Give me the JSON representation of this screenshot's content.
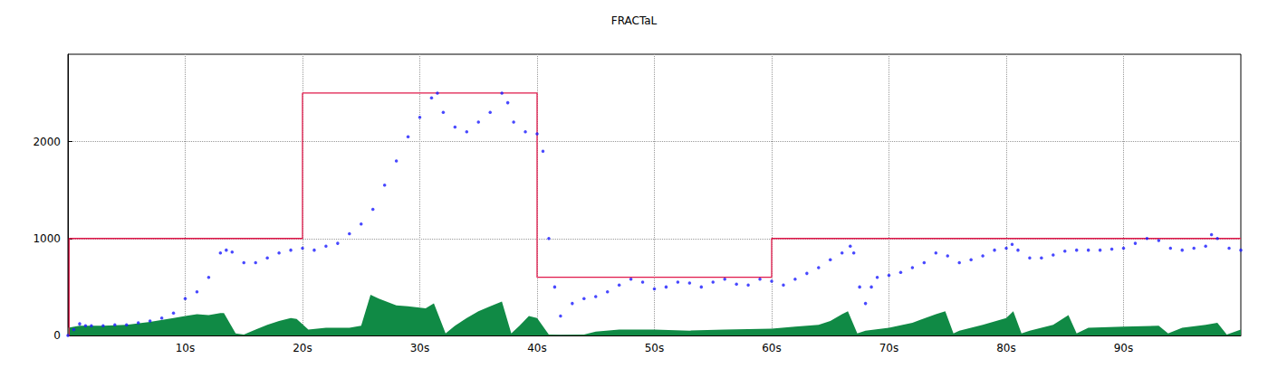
{
  "chart_data": {
    "type": "line",
    "title": "FRACTaL",
    "xlim": [
      0,
      100
    ],
    "xticks": [
      {
        "value": 10,
        "label": "10s"
      },
      {
        "value": 20,
        "label": "20s"
      },
      {
        "value": 30,
        "label": "30s"
      },
      {
        "value": 40,
        "label": "40s"
      },
      {
        "value": 50,
        "label": "50s"
      },
      {
        "value": 60,
        "label": "60s"
      },
      {
        "value": 70,
        "label": "70s"
      },
      {
        "value": 80,
        "label": "80s"
      },
      {
        "value": 90,
        "label": "90s"
      }
    ],
    "ylim": [
      0,
      2900
    ],
    "yticks": [
      0,
      1000,
      2000
    ],
    "grid": true,
    "series": [
      {
        "type": "area",
        "color": "#108a45",
        "x": [
          0,
          1,
          3,
          5,
          7,
          9,
          10,
          11,
          12,
          13,
          13.3,
          14.3,
          15,
          16,
          17,
          18,
          19,
          19.5,
          20.5,
          22,
          24,
          25,
          25.8,
          26.5,
          28,
          29,
          30.5,
          31.2,
          32.2,
          33,
          34,
          35,
          36,
          37,
          37.8,
          38.5,
          39.3,
          40,
          41,
          42,
          44,
          45,
          47,
          50,
          53,
          56,
          60,
          62,
          64,
          65,
          66,
          66.5,
          67.3,
          68,
          70,
          72,
          74,
          74.8,
          75.5,
          76,
          78,
          80,
          80.6,
          81.3,
          82,
          84,
          85.3,
          86,
          87,
          90,
          93,
          93.8,
          95,
          97,
          98,
          98.8,
          100
        ],
        "values": [
          80,
          100,
          100,
          110,
          140,
          180,
          200,
          220,
          210,
          230,
          230,
          20,
          10,
          60,
          110,
          150,
          180,
          170,
          60,
          80,
          80,
          100,
          420,
          380,
          310,
          300,
          280,
          330,
          20,
          100,
          180,
          250,
          300,
          350,
          20,
          100,
          200,
          180,
          10,
          5,
          10,
          40,
          60,
          60,
          50,
          60,
          70,
          90,
          110,
          150,
          220,
          250,
          20,
          50,
          80,
          130,
          220,
          250,
          20,
          50,
          110,
          180,
          250,
          20,
          50,
          110,
          210,
          20,
          80,
          90,
          100,
          20,
          80,
          110,
          130,
          10,
          60
        ]
      },
      {
        "type": "step",
        "color": "#e0184a",
        "x": [
          0,
          0.1,
          20,
          40,
          60,
          100
        ],
        "values": [
          0,
          1000,
          2500,
          600,
          1000,
          1000
        ]
      },
      {
        "type": "scatter",
        "color": "#1a1aff",
        "marker": "circle",
        "x": [
          0,
          0.5,
          1,
          1.5,
          2,
          3,
          4,
          5,
          6,
          7,
          8,
          9,
          10,
          11,
          12,
          13,
          13.5,
          14,
          15,
          16,
          17,
          18,
          19,
          20,
          21,
          22,
          23,
          24,
          25,
          26,
          27,
          28,
          29,
          30,
          31,
          31.5,
          32,
          33,
          34,
          35,
          36,
          37,
          37.5,
          38,
          39,
          40,
          40.5,
          41,
          41.5,
          42,
          43,
          44,
          45,
          46,
          47,
          48,
          49,
          50,
          51,
          52,
          53,
          54,
          55,
          56,
          57,
          58,
          59,
          60,
          61,
          62,
          63,
          64,
          65,
          66,
          66.7,
          67,
          67.5,
          68,
          68.5,
          69,
          70,
          71,
          72,
          73,
          74,
          75,
          76,
          77,
          78,
          79,
          80,
          80.5,
          81,
          82,
          83,
          84,
          85,
          86,
          87,
          88,
          89,
          90,
          91,
          92,
          93,
          94,
          95,
          96,
          97,
          97.5,
          98,
          99,
          100
        ],
        "values": [
          0,
          60,
          120,
          100,
          100,
          100,
          110,
          110,
          130,
          150,
          180,
          230,
          380,
          450,
          600,
          850,
          880,
          860,
          750,
          750,
          800,
          850,
          880,
          900,
          880,
          920,
          950,
          1050,
          1150,
          1300,
          1550,
          1800,
          2050,
          2250,
          2450,
          2500,
          2300,
          2150,
          2100,
          2200,
          2300,
          2500,
          2400,
          2200,
          2100,
          2080,
          1900,
          1000,
          500,
          200,
          330,
          380,
          400,
          450,
          520,
          580,
          550,
          480,
          500,
          550,
          540,
          500,
          550,
          580,
          530,
          520,
          580,
          560,
          520,
          580,
          640,
          700,
          780,
          850,
          920,
          850,
          500,
          330,
          500,
          600,
          620,
          650,
          700,
          750,
          850,
          820,
          750,
          780,
          820,
          880,
          900,
          940,
          880,
          800,
          800,
          830,
          870,
          880,
          880,
          880,
          890,
          900,
          950,
          1000,
          980,
          900,
          880,
          900,
          920,
          1040,
          1000,
          900,
          880
        ]
      }
    ]
  }
}
